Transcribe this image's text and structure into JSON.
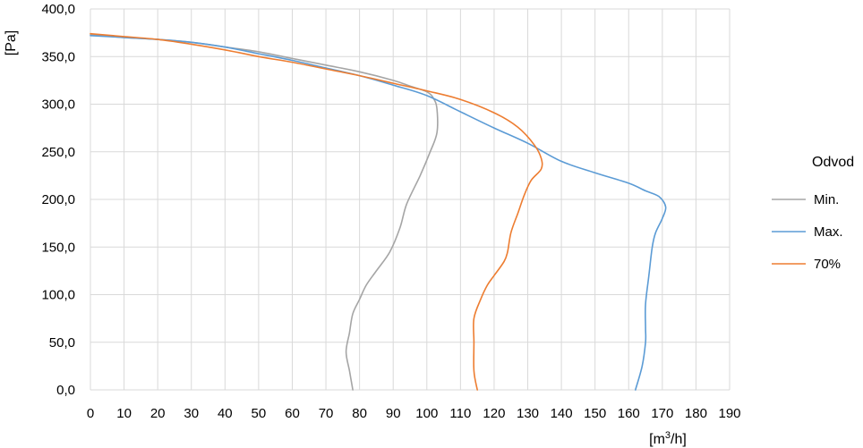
{
  "chart_data": {
    "type": "line",
    "xlabel": "[m³/h]",
    "ylabel": "[Pa]",
    "xlim": [
      0,
      190
    ],
    "ylim": [
      0,
      400
    ],
    "xticks": [
      "0",
      "10",
      "20",
      "30",
      "40",
      "50",
      "60",
      "70",
      "80",
      "90",
      "100",
      "110",
      "120",
      "130",
      "140",
      "150",
      "160",
      "170",
      "180",
      "190"
    ],
    "yticks": [
      "0,0",
      "50,0",
      "100,0",
      "150,0",
      "200,0",
      "250,0",
      "300,0",
      "350,0",
      "400,0"
    ],
    "grid": true,
    "legend": {
      "title": "Odvod",
      "position": "right"
    },
    "series": [
      {
        "name": "Min.",
        "color": "#a5a5a5",
        "points": [
          [
            0,
            373
          ],
          [
            10,
            370
          ],
          [
            20,
            368
          ],
          [
            30,
            365
          ],
          [
            40,
            360
          ],
          [
            50,
            355
          ],
          [
            60,
            348
          ],
          [
            70,
            341
          ],
          [
            80,
            334
          ],
          [
            90,
            325
          ],
          [
            95,
            319
          ],
          [
            100,
            313
          ],
          [
            102,
            306
          ],
          [
            103,
            295
          ],
          [
            103,
            270
          ],
          [
            101,
            250
          ],
          [
            98,
            225
          ],
          [
            94,
            195
          ],
          [
            92,
            170
          ],
          [
            89,
            145
          ],
          [
            85,
            125
          ],
          [
            82,
            110
          ],
          [
            80,
            95
          ],
          [
            78,
            80
          ],
          [
            77,
            60
          ],
          [
            76,
            40
          ],
          [
            77,
            20
          ],
          [
            78,
            0
          ]
        ]
      },
      {
        "name": "Max.",
        "color": "#5b9bd5",
        "points": [
          [
            0,
            372
          ],
          [
            10,
            370
          ],
          [
            20,
            368
          ],
          [
            30,
            365
          ],
          [
            40,
            360
          ],
          [
            50,
            353
          ],
          [
            60,
            346
          ],
          [
            70,
            338
          ],
          [
            80,
            330
          ],
          [
            90,
            320
          ],
          [
            100,
            309
          ],
          [
            110,
            292
          ],
          [
            120,
            275
          ],
          [
            130,
            259
          ],
          [
            140,
            240
          ],
          [
            150,
            228
          ],
          [
            160,
            217
          ],
          [
            165,
            209
          ],
          [
            169,
            203
          ],
          [
            171,
            192
          ],
          [
            170,
            180
          ],
          [
            168,
            165
          ],
          [
            167,
            150
          ],
          [
            166,
            120
          ],
          [
            165,
            90
          ],
          [
            165,
            65
          ],
          [
            165,
            50
          ],
          [
            164,
            25
          ],
          [
            162,
            0
          ]
        ]
      },
      {
        "name": "70%",
        "color": "#ed7d31",
        "points": [
          [
            0,
            374
          ],
          [
            10,
            371
          ],
          [
            20,
            368
          ],
          [
            30,
            363
          ],
          [
            40,
            357
          ],
          [
            50,
            350
          ],
          [
            60,
            344
          ],
          [
            70,
            337
          ],
          [
            80,
            330
          ],
          [
            90,
            322
          ],
          [
            100,
            314
          ],
          [
            110,
            305
          ],
          [
            120,
            291
          ],
          [
            127,
            276
          ],
          [
            132,
            257
          ],
          [
            134,
            243
          ],
          [
            134,
            232
          ],
          [
            131,
            220
          ],
          [
            129,
            205
          ],
          [
            127,
            185
          ],
          [
            125,
            165
          ],
          [
            124,
            145
          ],
          [
            123,
            135
          ],
          [
            120,
            120
          ],
          [
            118,
            110
          ],
          [
            116,
            95
          ],
          [
            114,
            75
          ],
          [
            114,
            50
          ],
          [
            114,
            20
          ],
          [
            115,
            0
          ]
        ]
      }
    ]
  }
}
